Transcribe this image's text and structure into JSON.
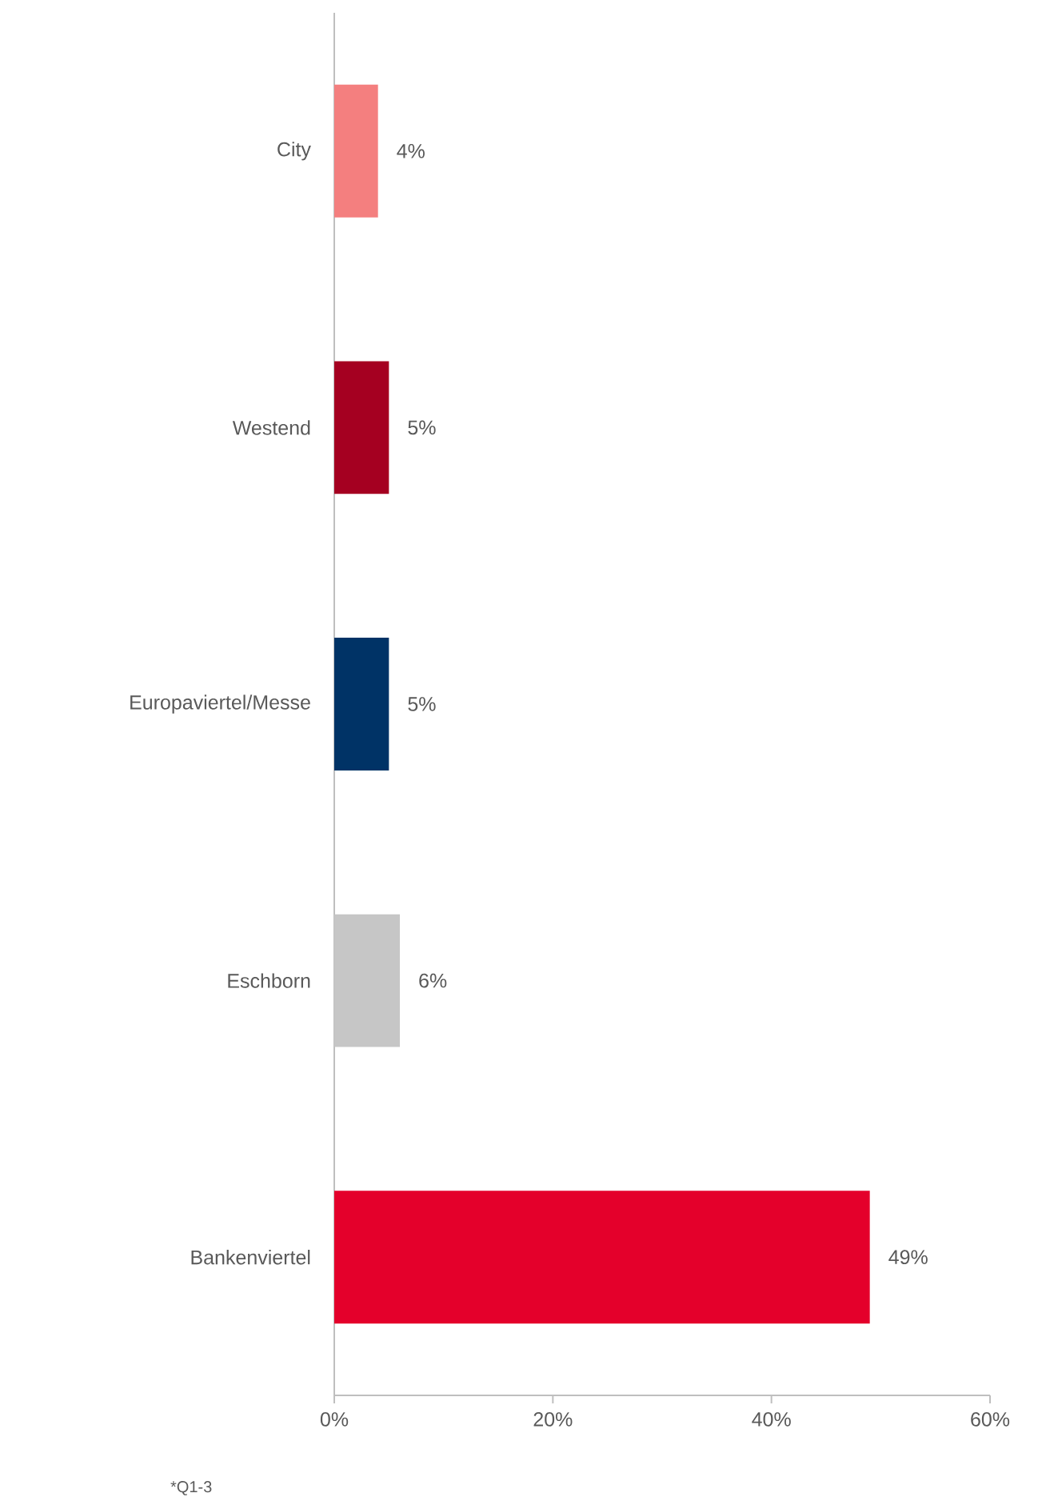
{
  "chart_data": {
    "type": "bar",
    "orientation": "horizontal",
    "categories": [
      "City",
      "Westend",
      "Europaviertel/Messe",
      "Eschborn",
      "Bankenviertel"
    ],
    "values": [
      4,
      5,
      5,
      6,
      49
    ],
    "colors": [
      "#f47f7f",
      "#a50021",
      "#003366",
      "#c6c6c6",
      "#e4002b"
    ],
    "value_labels": [
      "4%",
      "5%",
      "5%",
      "6%",
      "49%"
    ],
    "xlim": [
      0,
      60
    ],
    "xticks": [
      {
        "value": 0,
        "label": "0%"
      },
      {
        "value": 20,
        "label": "20%"
      },
      {
        "value": 40,
        "label": "40%"
      },
      {
        "value": 60,
        "label": "60%"
      }
    ],
    "annotations": [
      "*Q1-3"
    ]
  }
}
